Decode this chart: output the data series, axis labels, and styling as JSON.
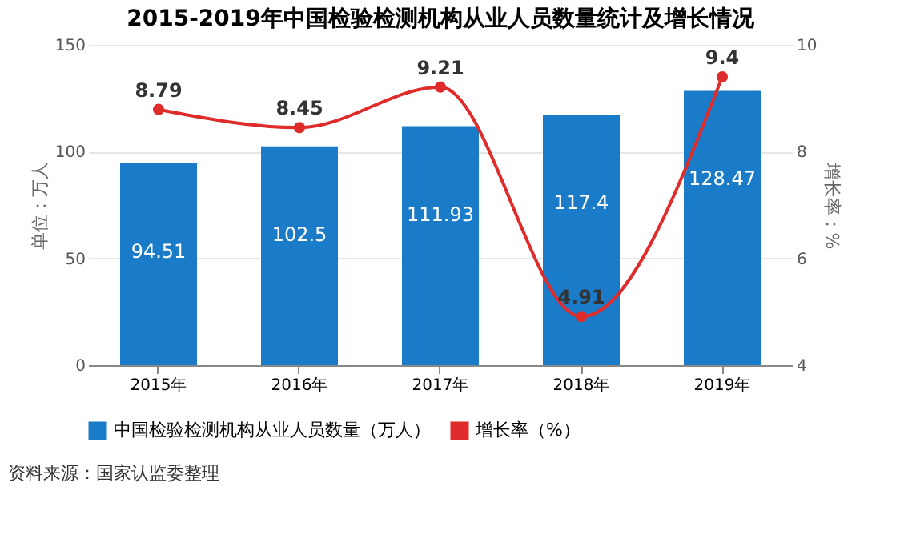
{
  "chart_data": {
    "type": "bar",
    "title": "2015-2019年中国检验检测机构从业人员数量统计及增长情况",
    "categories": [
      "2015年",
      "2016年",
      "2017年",
      "2018年",
      "2019年"
    ],
    "series": [
      {
        "name": "中国检验检测机构从业人员数量（万人）",
        "color": "#1a7cc8",
        "values": [
          94.51,
          102.5,
          111.93,
          117.4,
          128.47
        ]
      },
      {
        "name": "增长率（%）",
        "type": "line",
        "axis": "y2",
        "color": "#e02b2b",
        "values": [
          8.79,
          8.45,
          9.21,
          4.91,
          9.4
        ]
      }
    ],
    "ylabel": "单位：万人",
    "y2label": "增长率：%",
    "ylim": [
      0,
      150
    ],
    "yticks": [
      0,
      50,
      100,
      150
    ],
    "y2lim": [
      4,
      10
    ],
    "y2ticks": [
      4,
      6,
      8,
      10
    ],
    "data_labels": true,
    "grid": "y",
    "legend": "bottom",
    "marker": "circle",
    "line_style": "solid",
    "annotations": [
      "资料来源：国家认监委整理"
    ]
  }
}
